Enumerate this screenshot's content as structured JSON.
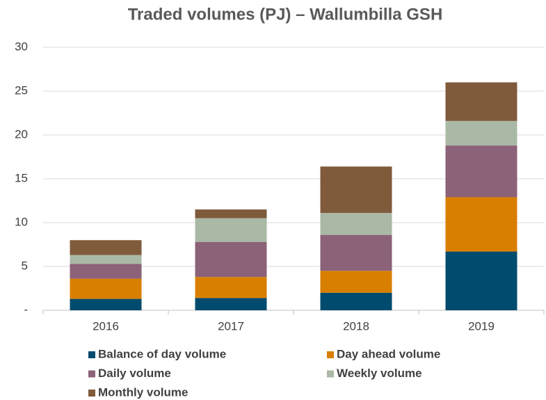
{
  "chart_data": {
    "type": "stacked_bar",
    "title": "Traded volumes (PJ) – Wallumbilla  GSH",
    "categories": [
      "2016",
      "2017",
      "2018",
      "2019"
    ],
    "series": [
      {
        "name": "Balance of day volume",
        "color": "#004b6e",
        "values": [
          1.3,
          1.4,
          2.0,
          6.7
        ]
      },
      {
        "name": "Day ahead volume",
        "color": "#d97f00",
        "values": [
          2.3,
          2.4,
          2.5,
          6.2
        ]
      },
      {
        "name": "Daily volume",
        "color": "#8b6278",
        "values": [
          1.7,
          4.0,
          4.1,
          5.9
        ]
      },
      {
        "name": "Weekly volume",
        "color": "#a9b9a6",
        "values": [
          1.0,
          2.7,
          2.5,
          2.8
        ]
      },
      {
        "name": "Monthly volume",
        "color": "#7f5b3c",
        "values": [
          1.7,
          1.0,
          5.3,
          4.4
        ]
      }
    ],
    "ylim": [
      0,
      30
    ],
    "yticks": [
      {
        "value": 0,
        "label": "-"
      },
      5,
      10,
      15,
      20,
      25,
      30
    ],
    "grid": true,
    "legend": "bottom"
  }
}
